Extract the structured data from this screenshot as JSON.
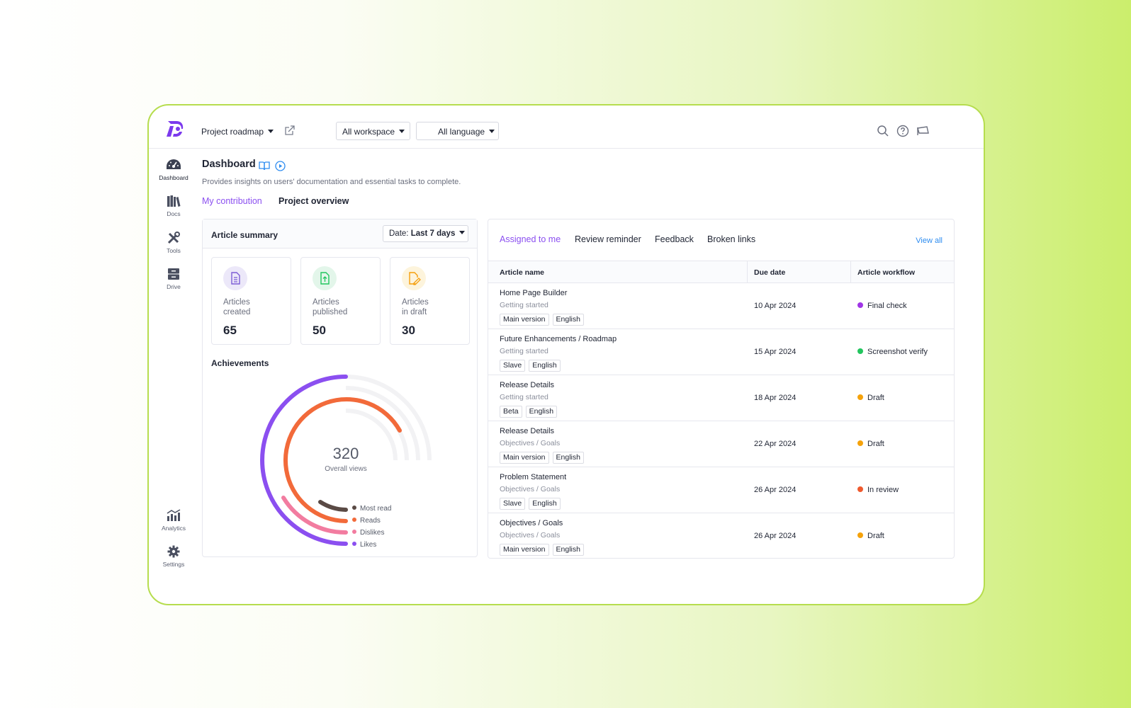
{
  "header": {
    "project_label": "Project roadmap",
    "workspace_label": "All workspace",
    "language_label": "All language"
  },
  "sidebar": {
    "items": [
      {
        "label": "Dashboard",
        "icon": "dashboard-gauge-icon"
      },
      {
        "label": "Docs",
        "icon": "books-icon"
      },
      {
        "label": "Tools",
        "icon": "tools-icon"
      },
      {
        "label": "Drive",
        "icon": "drive-icon"
      },
      {
        "label": "Analytics",
        "icon": "analytics-icon"
      },
      {
        "label": "Settings",
        "icon": "gear-icon"
      }
    ]
  },
  "page": {
    "title": "Dashboard",
    "subtitle": "Provides insights on users' documentation and essential tasks to complete.",
    "tabs": [
      "My contribution",
      "Project overview"
    ]
  },
  "summary": {
    "title": "Article summary",
    "date_prefix": "Date:",
    "date_value": "Last 7 days",
    "stats": [
      {
        "label_line1": "Articles",
        "label_line2": "created",
        "value": "65",
        "color": "#7c5cd6"
      },
      {
        "label_line1": "Articles",
        "label_line2": "published",
        "value": "50",
        "color": "#22c55e"
      },
      {
        "label_line1": "Articles",
        "label_line2": "in draft",
        "value": "30",
        "color": "#f59e0b"
      }
    ]
  },
  "achievements": {
    "title": "Achievements",
    "total": "320",
    "total_label": "Overall views",
    "legend": [
      {
        "label": "Most read",
        "color": "#5a4a45"
      },
      {
        "label": "Reads",
        "color": "#f26a3a"
      },
      {
        "label": "Dislikes",
        "color": "#f27ca0"
      },
      {
        "label": "Likes",
        "color": "#8b4ff0"
      }
    ]
  },
  "tasks": {
    "tabs": [
      "Assigned to me",
      "Review reminder",
      "Feedback",
      "Broken links"
    ],
    "view_all": "View all",
    "columns": [
      "Article name",
      "Due date",
      "Article workflow"
    ],
    "rows": [
      {
        "name": "Home Page Builder",
        "category": "Getting started",
        "version": "Main version",
        "language": "English",
        "due": "10 Apr 2024",
        "status": "Final check",
        "status_color": "#a035e6"
      },
      {
        "name": "Future Enhancements / Roadmap",
        "category": "Getting started",
        "version": "Slave",
        "language": "English",
        "due": "15 Apr 2024",
        "status": "Screenshot verify",
        "status_color": "#22c55e"
      },
      {
        "name": "Release Details",
        "category": "Getting started",
        "version": "Beta",
        "language": "English",
        "due": "18 Apr 2024",
        "status": "Draft",
        "status_color": "#f5a20b"
      },
      {
        "name": "Release Details",
        "category": "Objectives / Goals",
        "version": "Main version",
        "language": "English",
        "due": "22 Apr 2024",
        "status": "Draft",
        "status_color": "#f5a20b"
      },
      {
        "name": "Problem Statement",
        "category": "Objectives / Goals",
        "version": "Slave",
        "language": "English",
        "due": "26 Apr 2024",
        "status": "In review",
        "status_color": "#ef5a2e"
      },
      {
        "name": "Objectives / Goals",
        "category": "Objectives / Goals",
        "version": "Main version",
        "language": "English",
        "due": "26 Apr 2024",
        "status": "Draft",
        "status_color": "#f5a20b"
      }
    ]
  }
}
